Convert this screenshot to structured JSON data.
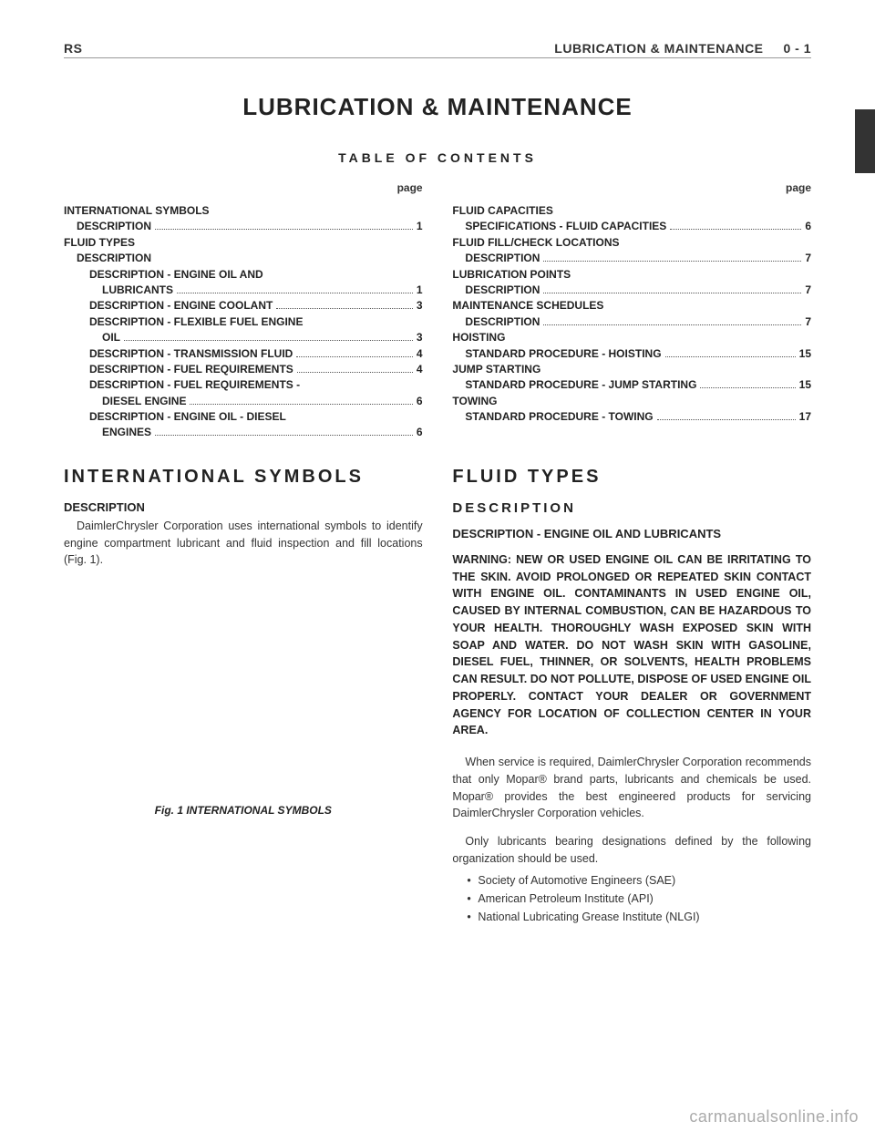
{
  "header": {
    "left": "RS",
    "right_section": "LUBRICATION & MAINTENANCE",
    "right_page": "0 - 1"
  },
  "main_title": "LUBRICATION & MAINTENANCE",
  "toc_title": "TABLE OF CONTENTS",
  "page_label": "page",
  "toc_left": [
    {
      "type": "section",
      "label": "INTERNATIONAL SYMBOLS"
    },
    {
      "type": "entry",
      "indent": 1,
      "label": "DESCRIPTION",
      "page": "1"
    },
    {
      "type": "section",
      "label": "FLUID TYPES"
    },
    {
      "type": "sub",
      "indent": 1,
      "label": "DESCRIPTION"
    },
    {
      "type": "sub",
      "indent": 2,
      "label": "DESCRIPTION - ENGINE OIL AND"
    },
    {
      "type": "entry",
      "indent": 3,
      "label": "LUBRICANTS",
      "page": "1"
    },
    {
      "type": "entry",
      "indent": 2,
      "label": "DESCRIPTION - ENGINE COOLANT",
      "page": "3"
    },
    {
      "type": "sub",
      "indent": 2,
      "label": "DESCRIPTION - FLEXIBLE FUEL ENGINE"
    },
    {
      "type": "entry",
      "indent": 3,
      "label": "OIL",
      "page": "3"
    },
    {
      "type": "entry",
      "indent": 2,
      "label": "DESCRIPTION - TRANSMISSION FLUID",
      "page": "4"
    },
    {
      "type": "entry",
      "indent": 2,
      "label": "DESCRIPTION - FUEL REQUIREMENTS",
      "page": "4"
    },
    {
      "type": "sub",
      "indent": 2,
      "label": "DESCRIPTION - FUEL REQUIREMENTS -"
    },
    {
      "type": "entry",
      "indent": 3,
      "label": "DIESEL ENGINE",
      "page": "6"
    },
    {
      "type": "sub",
      "indent": 2,
      "label": "DESCRIPTION - ENGINE OIL - DIESEL"
    },
    {
      "type": "entry",
      "indent": 3,
      "label": "ENGINES",
      "page": "6"
    }
  ],
  "toc_right": [
    {
      "type": "section",
      "label": "FLUID CAPACITIES"
    },
    {
      "type": "entry",
      "indent": 1,
      "label": "SPECIFICATIONS - FLUID CAPACITIES",
      "page": "6"
    },
    {
      "type": "section",
      "label": "FLUID FILL/CHECK LOCATIONS"
    },
    {
      "type": "entry",
      "indent": 1,
      "label": "DESCRIPTION",
      "page": "7"
    },
    {
      "type": "section",
      "label": "LUBRICATION POINTS"
    },
    {
      "type": "entry",
      "indent": 1,
      "label": "DESCRIPTION",
      "page": "7"
    },
    {
      "type": "section",
      "label": "MAINTENANCE SCHEDULES"
    },
    {
      "type": "entry",
      "indent": 1,
      "label": "DESCRIPTION",
      "page": "7"
    },
    {
      "type": "section",
      "label": "HOISTING"
    },
    {
      "type": "entry",
      "indent": 1,
      "label": "STANDARD PROCEDURE - HOISTING",
      "page": "15"
    },
    {
      "type": "section",
      "label": "JUMP STARTING"
    },
    {
      "type": "entry",
      "indent": 1,
      "label": "STANDARD PROCEDURE - JUMP STARTING",
      "page": "15"
    },
    {
      "type": "section",
      "label": "TOWING"
    },
    {
      "type": "entry",
      "indent": 1,
      "label": "STANDARD PROCEDURE - TOWING",
      "page": "17"
    }
  ],
  "left_column": {
    "section_title": "INTERNATIONAL SYMBOLS",
    "sub_title": "DESCRIPTION",
    "para": "DaimlerChrysler Corporation uses international symbols to identify engine compartment lubricant and fluid inspection and fill locations (Fig. 1).",
    "fig_caption": "Fig. 1 INTERNATIONAL SYMBOLS"
  },
  "right_column": {
    "section_title": "FLUID TYPES",
    "sub_title": "DESCRIPTION",
    "sub3_title": "DESCRIPTION - ENGINE OIL AND LUBRICANTS",
    "warning": "WARNING: NEW OR USED ENGINE OIL CAN BE IRRITATING TO THE SKIN. AVOID PROLONGED OR REPEATED SKIN CONTACT WITH ENGINE OIL. CONTAMINANTS IN USED ENGINE OIL, CAUSED BY INTERNAL COMBUSTION, CAN BE HAZARDOUS TO YOUR HEALTH. THOROUGHLY WASH EXPOSED SKIN WITH SOAP AND WATER. DO NOT WASH SKIN WITH GASOLINE, DIESEL FUEL, THINNER, OR SOLVENTS, HEALTH PROBLEMS CAN RESULT. DO NOT POLLUTE, DISPOSE OF USED ENGINE OIL PROPERLY. CONTACT YOUR DEALER OR GOVERNMENT AGENCY FOR LOCATION OF COLLECTION CENTER IN YOUR AREA.",
    "para1": "When service is required, DaimlerChrysler Corporation recommends that only Mopar® brand parts, lubricants and chemicals be used. Mopar® provides the best engineered products for servicing DaimlerChrysler Corporation vehicles.",
    "para2": "Only lubricants bearing designations defined by the following organization should be used.",
    "bullets": [
      "Society of Automotive Engineers (SAE)",
      "American Petroleum Institute (API)",
      "National Lubricating Grease Institute (NLGI)"
    ]
  },
  "watermark": "carmanualsonline.info"
}
